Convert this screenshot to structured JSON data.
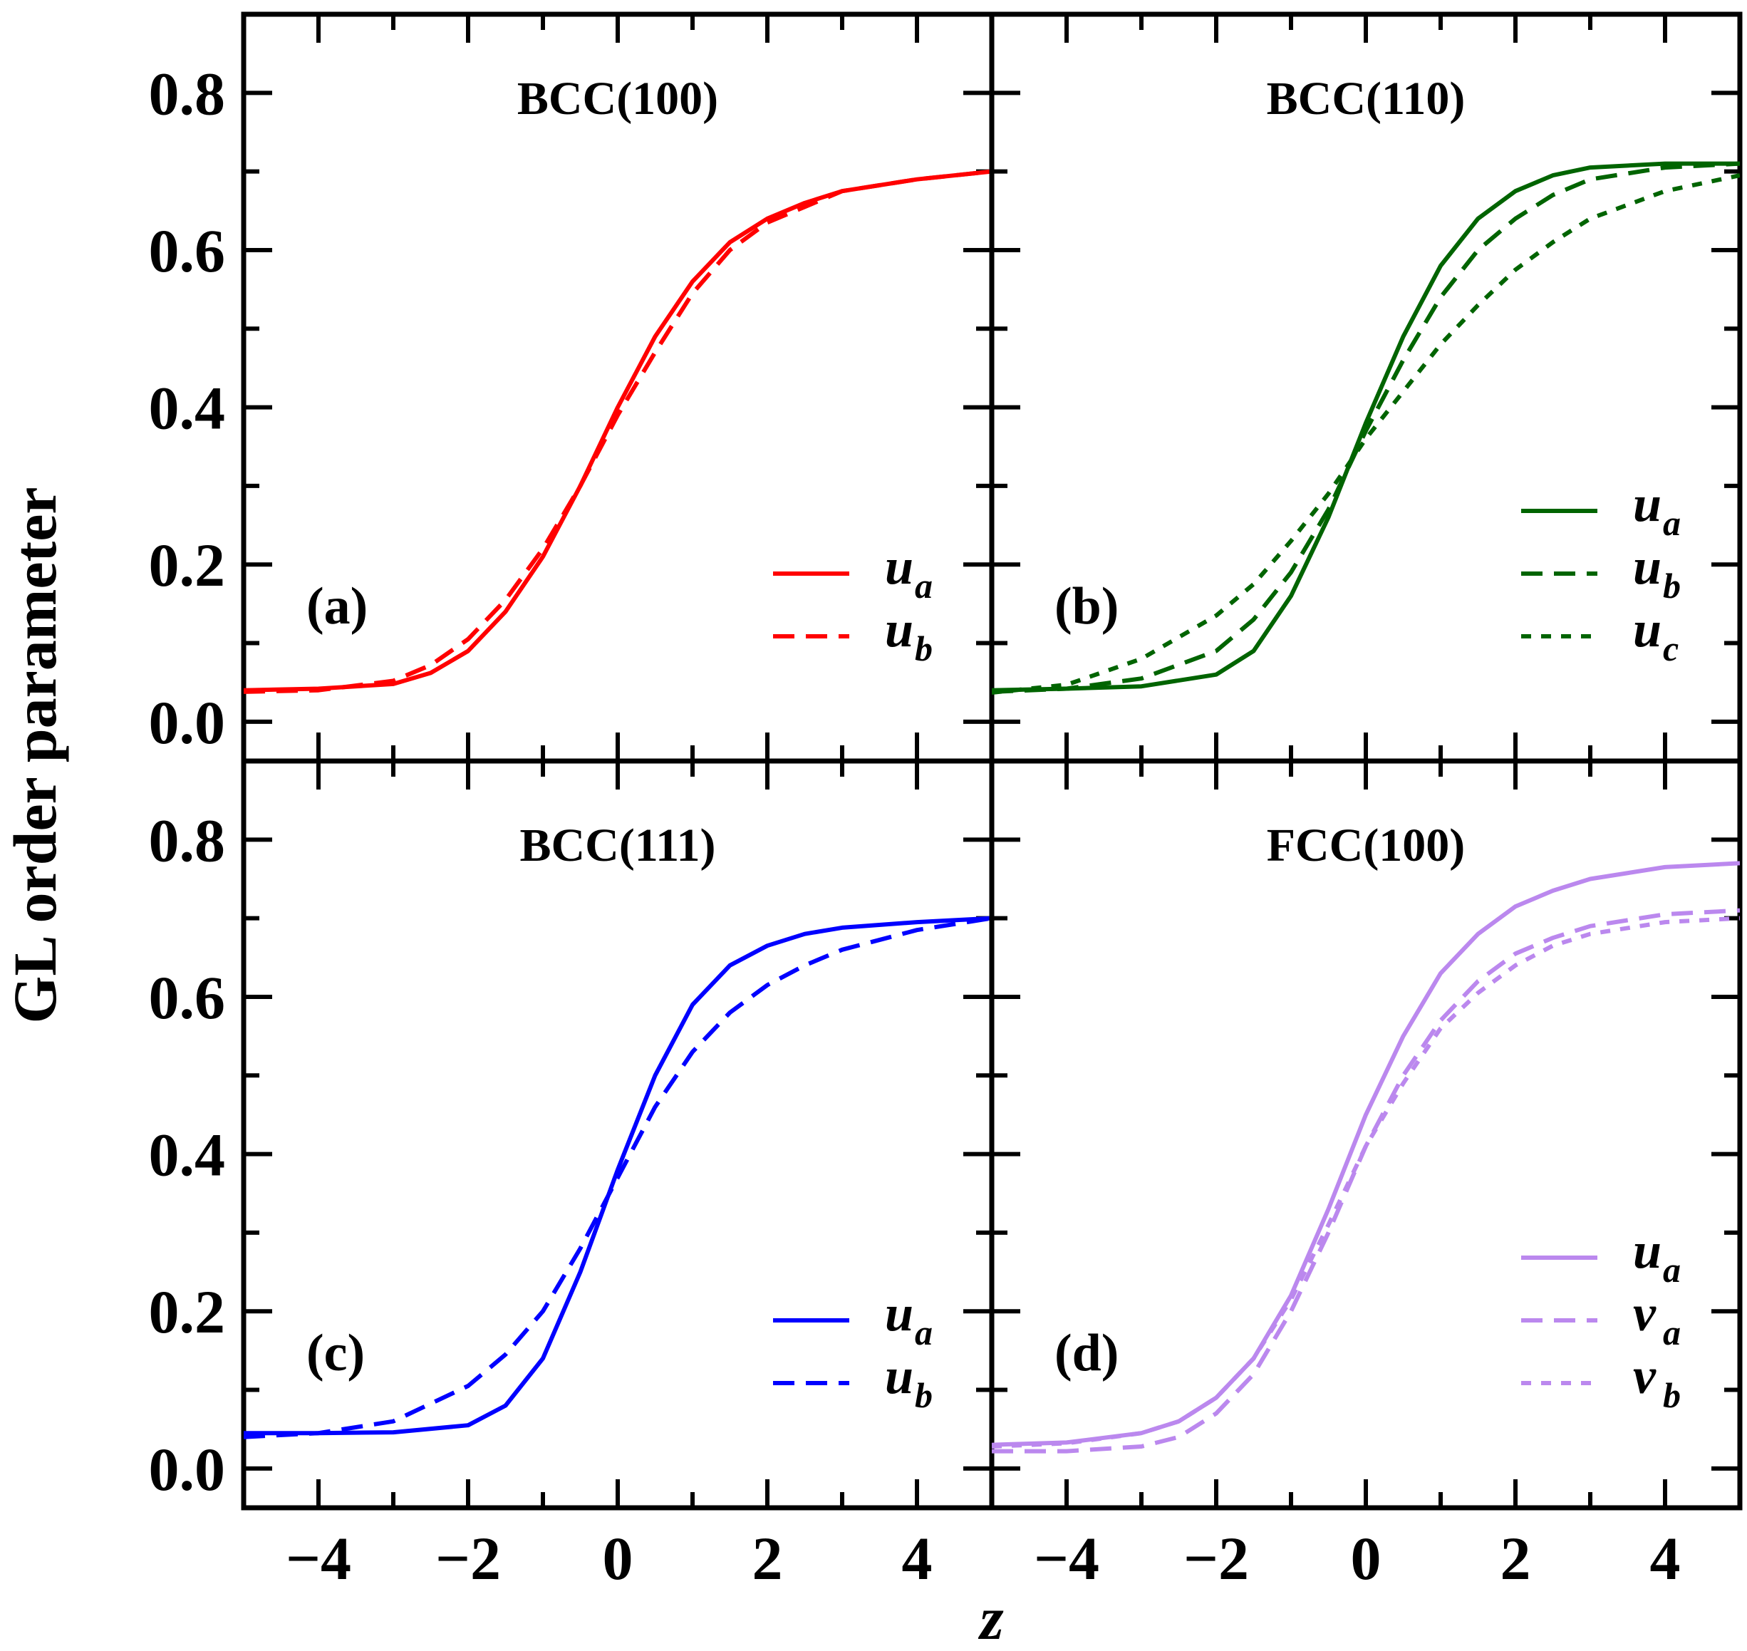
{
  "figure": {
    "ylabel": "GL order parameter",
    "xlabel": "z"
  },
  "chart_data": [
    {
      "type": "line",
      "panel_label": "(a)",
      "title": "BCC(100)",
      "xlabel": "z",
      "ylabel": "GL order parameter",
      "xlim": [
        -5,
        5
      ],
      "ylim": [
        -0.05,
        0.9
      ],
      "xticks": [
        -4,
        -2,
        0,
        2,
        4
      ],
      "xtick_labels": [
        "−4",
        "−2",
        "0",
        "2",
        "4"
      ],
      "yticks": [
        0.0,
        0.2,
        0.4,
        0.6,
        0.8
      ],
      "ytick_labels": [
        "0.0",
        "0.2",
        "0.4",
        "0.6",
        "0.8"
      ],
      "legend_position": "lower-right",
      "series": [
        {
          "name": "u",
          "sub": "a",
          "style": "solid",
          "color": "#ff0000",
          "x": [
            -5,
            -4,
            -3,
            -2.5,
            -2,
            -1.5,
            -1,
            -0.5,
            0,
            0.5,
            1,
            1.5,
            2,
            2.5,
            3,
            4,
            5
          ],
          "values": [
            0.04,
            0.042,
            0.048,
            0.062,
            0.09,
            0.14,
            0.21,
            0.3,
            0.4,
            0.49,
            0.56,
            0.61,
            0.64,
            0.66,
            0.675,
            0.69,
            0.7
          ]
        },
        {
          "name": "u",
          "sub": "b",
          "style": "dashed",
          "color": "#ff0000",
          "x": [
            -5,
            -4,
            -3,
            -2.5,
            -2,
            -1.5,
            -1,
            -0.5,
            0,
            0.5,
            1,
            1.5,
            2,
            2.5,
            3,
            4,
            5
          ],
          "values": [
            0.038,
            0.04,
            0.052,
            0.072,
            0.105,
            0.155,
            0.22,
            0.3,
            0.39,
            0.47,
            0.545,
            0.6,
            0.635,
            0.655,
            0.675,
            0.69,
            0.7
          ]
        }
      ]
    },
    {
      "type": "line",
      "panel_label": "(b)",
      "title": "BCC(110)",
      "xlim": [
        -5,
        5
      ],
      "ylim": [
        -0.05,
        0.9
      ],
      "xticks": [
        -4,
        -2,
        0,
        2,
        4
      ],
      "xtick_labels": [
        "−4",
        "−2",
        "0",
        "2",
        "4"
      ],
      "yticks": [
        0.0,
        0.2,
        0.4,
        0.6,
        0.8
      ],
      "legend_position": "lower-right",
      "series": [
        {
          "name": "u",
          "sub": "a",
          "style": "solid",
          "color": "#006400",
          "x": [
            -5,
            -4,
            -3,
            -2,
            -1.5,
            -1,
            -0.5,
            0,
            0.5,
            1,
            1.5,
            2,
            2.5,
            3,
            4,
            5
          ],
          "values": [
            0.04,
            0.042,
            0.045,
            0.06,
            0.09,
            0.16,
            0.26,
            0.38,
            0.49,
            0.58,
            0.64,
            0.675,
            0.695,
            0.705,
            0.71,
            0.71
          ]
        },
        {
          "name": "u",
          "sub": "b",
          "style": "dashed",
          "color": "#006400",
          "x": [
            -5,
            -4,
            -3,
            -2,
            -1.5,
            -1,
            -0.5,
            0,
            0.5,
            1,
            1.5,
            2,
            2.5,
            3,
            4,
            5
          ],
          "values": [
            0.038,
            0.042,
            0.055,
            0.09,
            0.13,
            0.19,
            0.27,
            0.37,
            0.46,
            0.54,
            0.6,
            0.64,
            0.67,
            0.69,
            0.705,
            0.71
          ]
        },
        {
          "name": "u",
          "sub": "c",
          "style": "dotted",
          "color": "#006400",
          "x": [
            -5,
            -4,
            -3,
            -2,
            -1.5,
            -1,
            -0.5,
            0,
            0.5,
            1,
            1.5,
            2,
            2.5,
            3,
            4,
            5
          ],
          "values": [
            0.037,
            0.047,
            0.08,
            0.135,
            0.175,
            0.23,
            0.29,
            0.36,
            0.42,
            0.48,
            0.53,
            0.575,
            0.61,
            0.64,
            0.675,
            0.695
          ]
        }
      ]
    },
    {
      "type": "line",
      "panel_label": "(c)",
      "title": "BCC(111)",
      "xlim": [
        -5,
        5
      ],
      "ylim": [
        -0.05,
        0.9
      ],
      "xticks": [
        -4,
        -2,
        0,
        2,
        4
      ],
      "xtick_labels": [
        "−4",
        "−2",
        "0",
        "2",
        "4"
      ],
      "yticks": [
        0.0,
        0.2,
        0.4,
        0.6,
        0.8
      ],
      "ytick_labels": [
        "0.0",
        "0.2",
        "0.4",
        "0.6",
        "0.8"
      ],
      "legend_position": "lower-right",
      "series": [
        {
          "name": "u",
          "sub": "a",
          "style": "solid",
          "color": "#0000ff",
          "x": [
            -5,
            -4,
            -3,
            -2,
            -1.5,
            -1,
            -0.5,
            0,
            0.5,
            1,
            1.5,
            2,
            2.5,
            3,
            4,
            5
          ],
          "values": [
            0.045,
            0.045,
            0.046,
            0.055,
            0.08,
            0.14,
            0.25,
            0.38,
            0.5,
            0.59,
            0.64,
            0.665,
            0.68,
            0.688,
            0.695,
            0.7
          ]
        },
        {
          "name": "u",
          "sub": "b",
          "style": "dashed",
          "color": "#0000ff",
          "x": [
            -5,
            -4,
            -3,
            -2,
            -1.5,
            -1,
            -0.5,
            0,
            0.5,
            1,
            1.5,
            2,
            2.5,
            3,
            4,
            5
          ],
          "values": [
            0.04,
            0.045,
            0.06,
            0.105,
            0.145,
            0.2,
            0.28,
            0.37,
            0.46,
            0.53,
            0.58,
            0.615,
            0.64,
            0.66,
            0.685,
            0.7
          ]
        }
      ]
    },
    {
      "type": "line",
      "panel_label": "(d)",
      "title": "FCC(100)",
      "xlim": [
        -5,
        5
      ],
      "ylim": [
        -0.05,
        0.9
      ],
      "xticks": [
        -4,
        -2,
        0,
        2,
        4
      ],
      "xtick_labels": [
        "−4",
        "−2",
        "0",
        "2",
        "4"
      ],
      "yticks": [
        0.0,
        0.2,
        0.4,
        0.6,
        0.8
      ],
      "legend_position": "lower-right",
      "series": [
        {
          "name": "u",
          "sub": "a",
          "style": "solid",
          "color": "#bb88ee",
          "x": [
            -5,
            -4,
            -3,
            -2.5,
            -2,
            -1.5,
            -1,
            -0.5,
            0,
            0.5,
            1,
            1.5,
            2,
            2.5,
            3,
            4,
            5
          ],
          "values": [
            0.03,
            0.033,
            0.045,
            0.06,
            0.09,
            0.14,
            0.22,
            0.33,
            0.45,
            0.55,
            0.63,
            0.68,
            0.715,
            0.735,
            0.75,
            0.765,
            0.77
          ]
        },
        {
          "name": "v",
          "sub": "a",
          "style": "dashed",
          "color": "#bb88ee",
          "x": [
            -5,
            -4,
            -3,
            -2.5,
            -2,
            -1.5,
            -1,
            -0.5,
            0,
            0.5,
            1,
            1.5,
            2,
            2.5,
            3,
            4,
            5
          ],
          "values": [
            0.022,
            0.022,
            0.028,
            0.04,
            0.07,
            0.12,
            0.2,
            0.3,
            0.41,
            0.5,
            0.57,
            0.62,
            0.655,
            0.675,
            0.69,
            0.705,
            0.71
          ]
        },
        {
          "name": "v",
          "sub": "b",
          "style": "dotted",
          "color": "#bb88ee",
          "x": [
            -5,
            -4,
            -3,
            -2.5,
            -2,
            -1.5,
            -1,
            -0.5,
            0,
            0.5,
            1,
            1.5,
            2,
            2.5,
            3,
            4,
            5
          ],
          "values": [
            0.028,
            0.032,
            0.045,
            0.06,
            0.09,
            0.14,
            0.215,
            0.31,
            0.41,
            0.49,
            0.56,
            0.605,
            0.64,
            0.665,
            0.68,
            0.695,
            0.7
          ]
        }
      ]
    }
  ]
}
